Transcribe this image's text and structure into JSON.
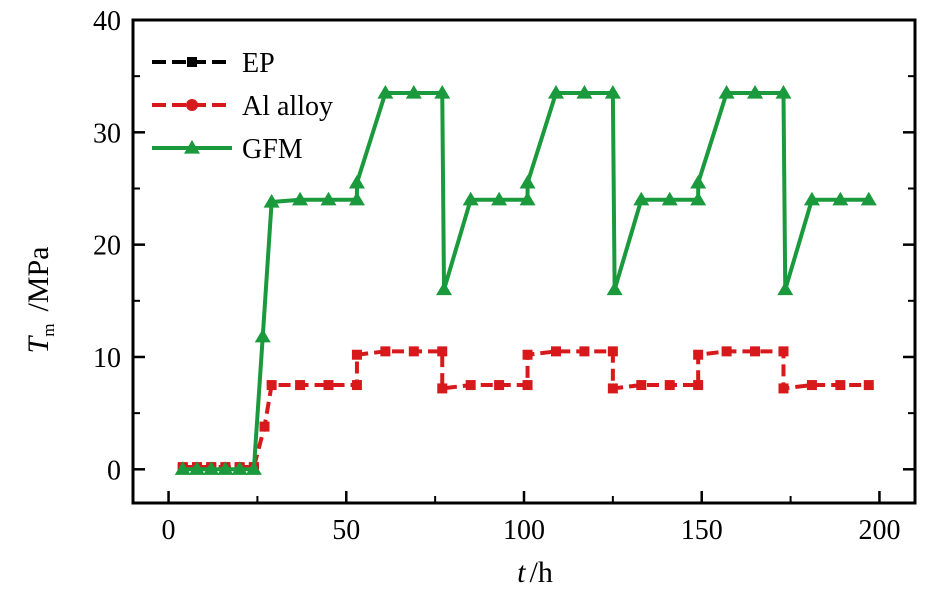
{
  "chart_data": {
    "type": "line",
    "title": "",
    "xlabel": {
      "var": "t",
      "unit": "/h"
    },
    "ylabel": {
      "var": "T",
      "sub": "m",
      "unit": "/MPa"
    },
    "xlim": [
      -10,
      210
    ],
    "ylim": [
      -3,
      40
    ],
    "xticks": [
      "0",
      "50",
      "100",
      "150",
      "200"
    ],
    "yticks": [
      "0",
      "10",
      "20",
      "30",
      "40"
    ],
    "grid": false,
    "legend": "top-left",
    "series": [
      {
        "name": "EP",
        "color": "#000000",
        "marker": "square",
        "x": [
          4,
          8,
          12,
          16,
          20,
          24
        ],
        "y": [
          0.1,
          0.1,
          0.1,
          0.1,
          0.1,
          0.1
        ]
      },
      {
        "name": "Al alloy",
        "color": "#d7191c",
        "marker": "circle",
        "x": [
          4,
          8,
          12,
          16,
          20,
          24,
          27,
          29,
          37,
          45,
          53,
          53,
          61,
          69,
          77,
          77,
          85,
          93,
          101,
          101,
          109,
          117,
          125,
          125,
          133,
          141,
          149,
          149,
          157,
          165,
          173,
          173,
          181,
          189,
          197
        ],
        "y": [
          0.2,
          0.2,
          0.2,
          0.2,
          0.2,
          0.2,
          3.8,
          7.5,
          7.5,
          7.5,
          7.5,
          10.2,
          10.5,
          10.5,
          10.5,
          7.2,
          7.5,
          7.5,
          7.5,
          10.2,
          10.5,
          10.5,
          10.5,
          7.2,
          7.5,
          7.5,
          7.5,
          10.2,
          10.5,
          10.5,
          10.5,
          7.2,
          7.5,
          7.5,
          7.5
        ]
      },
      {
        "name": "GFM",
        "color": "#1a9a3c",
        "marker": "triangle",
        "x": [
          4,
          8,
          12,
          16,
          20,
          24,
          26.5,
          29,
          37,
          45,
          53,
          53,
          61,
          69,
          77,
          77.5,
          85,
          93,
          101,
          101,
          109,
          117,
          125,
          125.5,
          133,
          141,
          149,
          149,
          157,
          165,
          173,
          173.5,
          181,
          189,
          197
        ],
        "y": [
          0,
          0,
          0,
          0,
          0,
          0,
          11.8,
          23.8,
          24,
          24,
          24,
          25.5,
          33.5,
          33.5,
          33.5,
          16,
          24,
          24,
          24,
          25.5,
          33.5,
          33.5,
          33.5,
          16,
          24,
          24,
          24,
          25.5,
          33.5,
          33.5,
          33.5,
          16,
          24,
          24,
          24
        ]
      }
    ]
  }
}
